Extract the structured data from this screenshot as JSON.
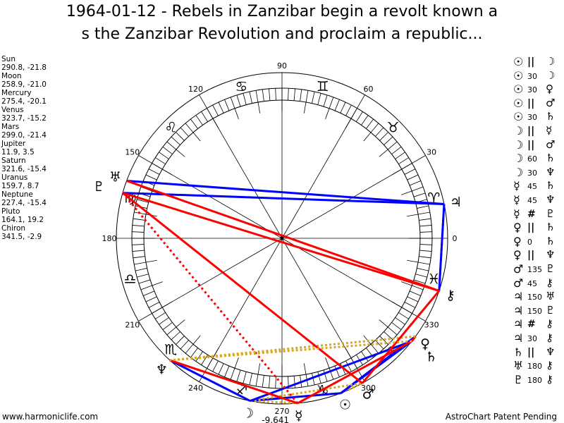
{
  "title_line1": "1964-01-12 - Rebels in Zanzibar begin a revolt known a",
  "title_line2": "s the Zanzibar Revolution and proclaim a republic...",
  "planets": [
    {
      "name": "Sun",
      "coords": "290.8, -21.8",
      "lon": 290.8,
      "glyph": "☉"
    },
    {
      "name": "Moon",
      "coords": "258.9, -21.0",
      "lon": 258.9,
      "glyph": "☽"
    },
    {
      "name": "Mercury",
      "coords": "275.4, -20.1",
      "lon": 275.4,
      "glyph": "☿"
    },
    {
      "name": "Venus",
      "coords": "323.7, -15.2",
      "lon": 323.7,
      "glyph": "♀"
    },
    {
      "name": "Mars",
      "coords": "299.0, -21.4",
      "lon": 299.0,
      "glyph": "♂"
    },
    {
      "name": "Jupiter",
      "coords": "11.9, 3.5",
      "lon": 11.9,
      "glyph": "♃"
    },
    {
      "name": "Saturn",
      "coords": "321.6, -15.4",
      "lon": 321.6,
      "glyph": "♄"
    },
    {
      "name": "Uranus",
      "coords": "159.7, 8.7",
      "lon": 159.7,
      "glyph": "♅"
    },
    {
      "name": "Neptune",
      "coords": "227.4, -15.4",
      "lon": 227.4,
      "glyph": "♆"
    },
    {
      "name": "Pluto",
      "coords": "164.1, 19.2",
      "lon": 164.1,
      "glyph": "♇"
    },
    {
      "name": "Chiron",
      "coords": "341.5, -2.9",
      "lon": 341.5,
      "glyph": "⚷"
    }
  ],
  "aspects": [
    {
      "p1": "☉",
      "a": "||",
      "p2": "☽",
      "from": "Sun",
      "to": "Moon"
    },
    {
      "p1": "☉",
      "a": "30",
      "p2": "☽",
      "from": "Sun",
      "to": "Moon"
    },
    {
      "p1": "☉",
      "a": "30",
      "p2": "♀",
      "from": "Sun",
      "to": "Venus"
    },
    {
      "p1": "☉",
      "a": "||",
      "p2": "♂",
      "from": "Sun",
      "to": "Mars"
    },
    {
      "p1": "☉",
      "a": "30",
      "p2": "♄",
      "from": "Sun",
      "to": "Saturn"
    },
    {
      "p1": "☽",
      "a": "||",
      "p2": "☿",
      "from": "Moon",
      "to": "Mercury"
    },
    {
      "p1": "☽",
      "a": "||",
      "p2": "♂",
      "from": "Moon",
      "to": "Mars"
    },
    {
      "p1": "☽",
      "a": "60",
      "p2": "♄",
      "from": "Moon",
      "to": "Saturn"
    },
    {
      "p1": "☽",
      "a": "30",
      "p2": "♆",
      "from": "Moon",
      "to": "Neptune"
    },
    {
      "p1": "☿",
      "a": "45",
      "p2": "♄",
      "from": "Mercury",
      "to": "Saturn"
    },
    {
      "p1": "☿",
      "a": "45",
      "p2": "♆",
      "from": "Mercury",
      "to": "Neptune"
    },
    {
      "p1": "☿",
      "a": "#",
      "p2": "♇",
      "from": "Mercury",
      "to": "Pluto"
    },
    {
      "p1": "♀",
      "a": "||",
      "p2": "♄",
      "from": "Venus",
      "to": "Saturn"
    },
    {
      "p1": "♀",
      "a": "0",
      "p2": "♄",
      "from": "Venus",
      "to": "Saturn"
    },
    {
      "p1": "♀",
      "a": "||",
      "p2": "♆",
      "from": "Venus",
      "to": "Neptune"
    },
    {
      "p1": "♂",
      "a": "135",
      "p2": "♇",
      "from": "Mars",
      "to": "Pluto"
    },
    {
      "p1": "♂",
      "a": "45",
      "p2": "⚷",
      "from": "Mars",
      "to": "Chiron"
    },
    {
      "p1": "♃",
      "a": "150",
      "p2": "♅",
      "from": "Jupiter",
      "to": "Uranus"
    },
    {
      "p1": "♃",
      "a": "150",
      "p2": "♇",
      "from": "Jupiter",
      "to": "Pluto"
    },
    {
      "p1": "♃",
      "a": "#",
      "p2": "⚷",
      "from": "Jupiter",
      "to": "Chiron"
    },
    {
      "p1": "♃",
      "a": "30",
      "p2": "⚷",
      "from": "Jupiter",
      "to": "Chiron"
    },
    {
      "p1": "♄",
      "a": "||",
      "p2": "♆",
      "from": "Saturn",
      "to": "Neptune"
    },
    {
      "p1": "♅",
      "a": "180",
      "p2": "⚷",
      "from": "Uranus",
      "to": "Chiron"
    },
    {
      "p1": "♇",
      "a": "180",
      "p2": "⚷",
      "from": "Pluto",
      "to": "Chiron"
    }
  ],
  "zodiac": [
    "♈",
    "♉",
    "♊",
    "♋",
    "♌",
    "♍",
    "♎",
    "♏",
    "♐",
    "♑",
    "♒",
    "♓"
  ],
  "degree_labels": [
    "0",
    "30",
    "60",
    "90",
    "120",
    "150",
    "180",
    "210",
    "240",
    "270",
    "300",
    "330"
  ],
  "bottom_value": "-9,641",
  "footer_left": "www.harmoniclife.com",
  "footer_right": "AstroChart Patent Pending",
  "colors": {
    "soft": "#0000ff",
    "hard": "#ff0000",
    "parallel": "#daa520",
    "contraparallel": "#ff0000"
  }
}
